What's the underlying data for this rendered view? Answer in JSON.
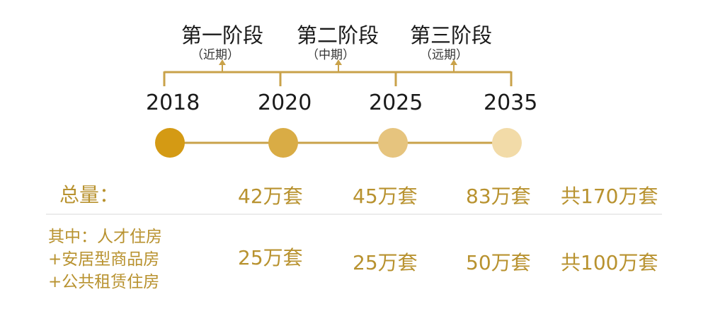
{
  "phases": [
    {
      "title": "第一阶段",
      "sub": "（近期）"
    },
    {
      "title": "第二阶段",
      "sub": "（中期）"
    },
    {
      "title": "第三阶段",
      "sub": "（远期）"
    }
  ],
  "years": [
    "2018",
    "2020",
    "2025",
    "2035"
  ],
  "node_colors": [
    "#d49a14",
    "#d9ac45",
    "#e6c47e",
    "#f2dba8"
  ],
  "line_color": "#c9a24a",
  "text_color": "#b8922f",
  "total": {
    "label": "总量：",
    "values": [
      "42万套",
      "45万套",
      "83万套"
    ],
    "sum": "共170万套"
  },
  "detail": {
    "label_lines": [
      "其中：人才住房",
      "+安居型商品房",
      "+公共租赁住房"
    ],
    "values": [
      "25万套",
      "25万套",
      "50万套"
    ],
    "sum": "共100万套"
  }
}
